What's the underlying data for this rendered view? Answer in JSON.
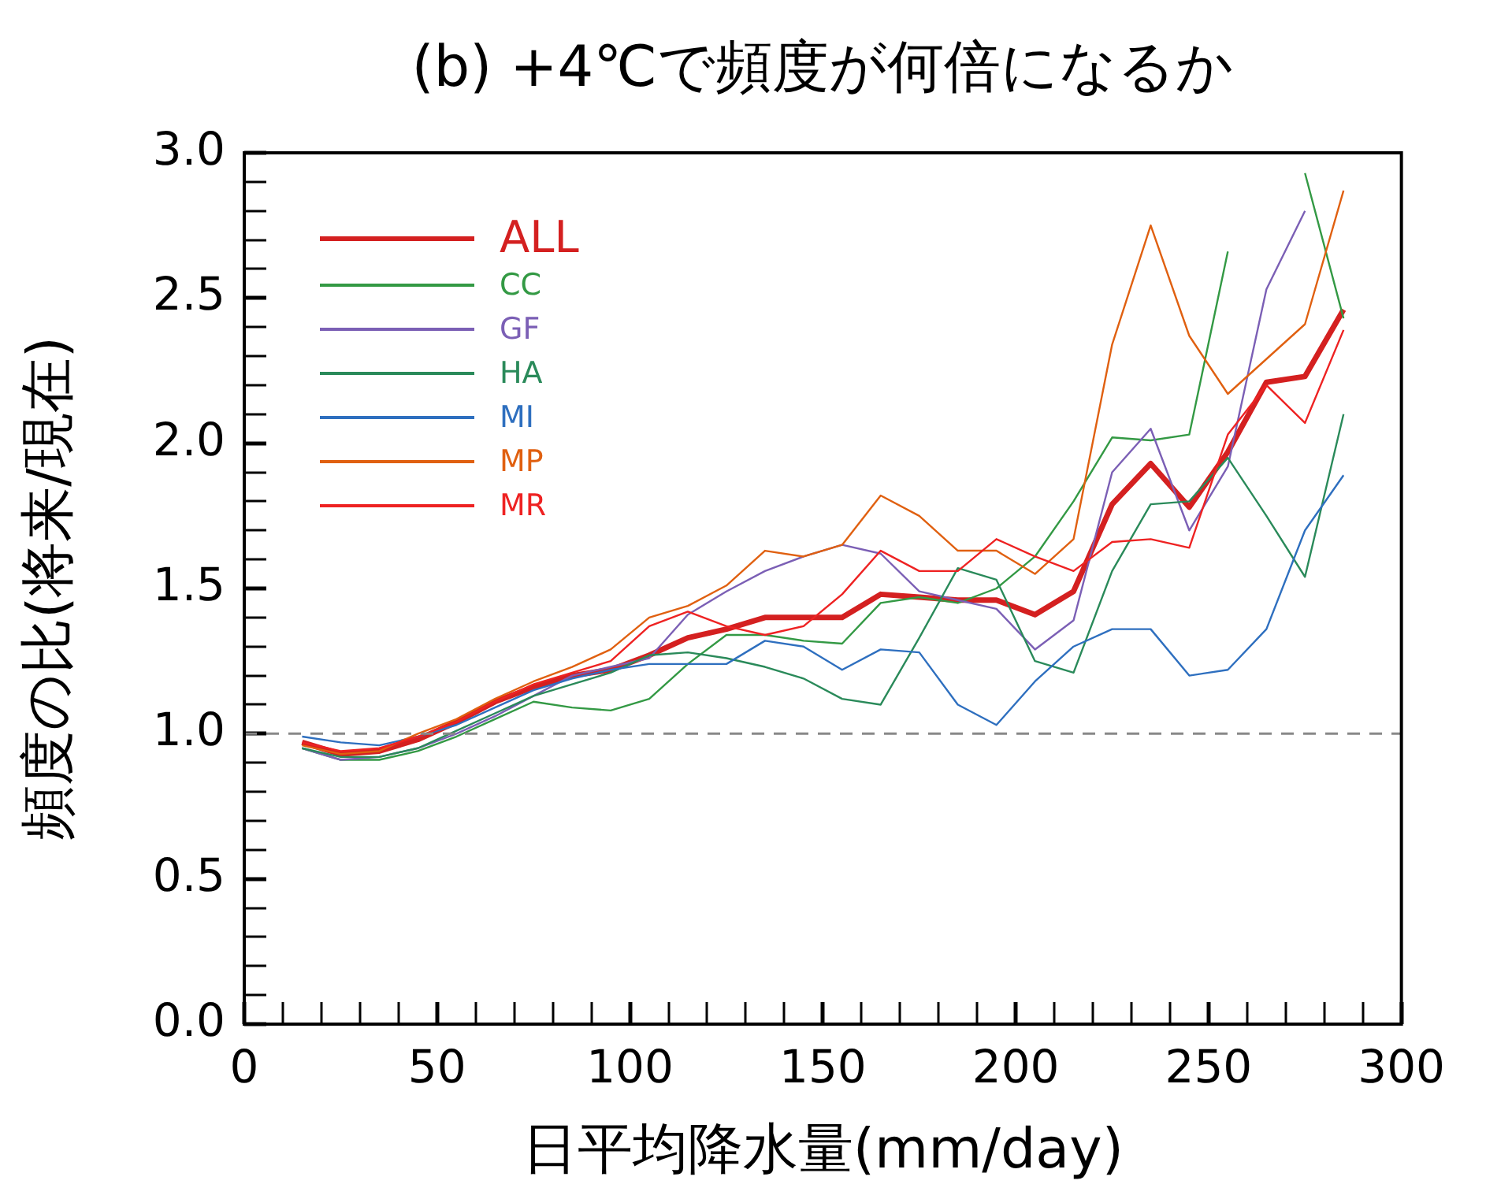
{
  "chart_data": {
    "type": "line",
    "title": "(b) +4℃で頻度が何倍になるか",
    "xlabel": "日平均降水量(mm/day)",
    "ylabel": "頻度の比(将来/現在)",
    "x": [
      15,
      25,
      35,
      45,
      55,
      65,
      75,
      85,
      95,
      105,
      115,
      125,
      135,
      145,
      155,
      165,
      175,
      185,
      195,
      205,
      215,
      225,
      235,
      245,
      255,
      265,
      275,
      285
    ],
    "series": [
      {
        "name": "ALL",
        "color": "#d42020",
        "values": [
          0.97,
          0.93,
          0.94,
          0.98,
          1.04,
          1.11,
          1.16,
          1.2,
          1.22,
          1.27,
          1.33,
          1.36,
          1.4,
          1.4,
          1.4,
          1.48,
          1.47,
          1.46,
          1.46,
          1.41,
          1.49,
          1.79,
          1.93,
          1.78,
          1.97,
          2.21,
          2.23,
          2.46
        ]
      },
      {
        "name": "CC",
        "color": "#339944",
        "values": [
          0.95,
          0.91,
          0.91,
          0.94,
          0.99,
          1.05,
          1.11,
          1.09,
          1.08,
          1.12,
          1.24,
          1.34,
          1.34,
          1.32,
          1.31,
          1.45,
          1.47,
          1.45,
          1.5,
          1.61,
          1.8,
          2.02,
          2.01,
          2.03,
          2.66,
          null,
          2.93,
          2.43
        ]
      },
      {
        "name": "GF",
        "color": "#7b5fb5",
        "values": [
          0.95,
          0.91,
          0.92,
          0.95,
          1.0,
          1.06,
          1.13,
          1.2,
          1.23,
          1.26,
          1.41,
          1.49,
          1.56,
          1.61,
          1.65,
          1.62,
          1.49,
          1.46,
          1.43,
          1.29,
          1.39,
          1.9,
          2.05,
          1.7,
          1.92,
          2.53,
          2.8,
          null
        ]
      },
      {
        "name": "HA",
        "color": "#2a8a5a",
        "values": [
          0.95,
          0.92,
          0.92,
          0.95,
          1.01,
          1.07,
          1.13,
          1.17,
          1.21,
          1.27,
          1.28,
          1.26,
          1.23,
          1.19,
          1.12,
          1.1,
          1.33,
          1.57,
          1.53,
          1.25,
          1.21,
          1.56,
          1.79,
          1.8,
          1.95,
          1.75,
          1.54,
          2.1
        ]
      },
      {
        "name": "MI",
        "color": "#2e6fbf",
        "values": [
          0.99,
          0.97,
          0.96,
          0.99,
          1.03,
          1.09,
          1.15,
          1.19,
          1.22,
          1.24,
          1.24,
          1.24,
          1.32,
          1.3,
          1.22,
          1.29,
          1.28,
          1.1,
          1.03,
          1.18,
          1.3,
          1.36,
          1.36,
          1.2,
          1.22,
          1.36,
          1.7,
          1.89
        ]
      },
      {
        "name": "MP",
        "color": "#e06010",
        "values": [
          0.96,
          0.93,
          0.94,
          1.0,
          1.05,
          1.12,
          1.18,
          1.23,
          1.29,
          1.4,
          1.44,
          1.51,
          1.63,
          1.61,
          1.65,
          1.82,
          1.75,
          1.63,
          1.63,
          1.55,
          1.67,
          2.34,
          2.75,
          2.37,
          2.17,
          2.29,
          2.41,
          2.87
        ]
      },
      {
        "name": "MR",
        "color": "#ee2222",
        "values": [
          0.97,
          0.94,
          0.95,
          0.99,
          1.04,
          1.11,
          1.17,
          1.21,
          1.25,
          1.37,
          1.42,
          1.37,
          1.34,
          1.37,
          1.48,
          1.63,
          1.56,
          1.56,
          1.67,
          1.61,
          1.56,
          1.66,
          1.67,
          1.64,
          2.03,
          2.2,
          2.07,
          2.39
        ]
      }
    ],
    "xlim": [
      0,
      300
    ],
    "xticks": [
      0,
      {
        "value": 10,
        "label": null
      },
      {
        "value": 20,
        "label": null
      },
      {
        "value": 30,
        "label": null
      },
      {
        "value": 40,
        "label": null
      },
      50,
      {
        "value": 60,
        "label": null
      },
      {
        "value": 70,
        "label": null
      },
      {
        "value": 80,
        "label": null
      },
      {
        "value": 90,
        "label": null
      },
      100,
      {
        "value": 110,
        "label": null
      },
      {
        "value": 120,
        "label": null
      },
      {
        "value": 130,
        "label": null
      },
      {
        "value": 140,
        "label": null
      },
      150,
      {
        "value": 160,
        "label": null
      },
      {
        "value": 170,
        "label": null
      },
      {
        "value": 180,
        "label": null
      },
      {
        "value": 190,
        "label": null
      },
      200,
      {
        "value": 210,
        "label": null
      },
      {
        "value": 220,
        "label": null
      },
      {
        "value": 230,
        "label": null
      },
      {
        "value": 240,
        "label": null
      },
      250,
      {
        "value": 260,
        "label": null
      },
      {
        "value": 270,
        "label": null
      },
      {
        "value": 280,
        "label": null
      },
      {
        "value": 290,
        "label": null
      },
      300
    ],
    "ylim": [
      0,
      3
    ],
    "yticks": [
      {
        "value": 0,
        "label": "0.0"
      },
      {
        "value": 0.1,
        "label": null
      },
      {
        "value": 0.2,
        "label": null
      },
      {
        "value": 0.3,
        "label": null
      },
      {
        "value": 0.4,
        "label": null
      },
      {
        "value": 0.5,
        "label": "0.5"
      },
      {
        "value": 0.6,
        "label": null
      },
      {
        "value": 0.7,
        "label": null
      },
      {
        "value": 0.8,
        "label": null
      },
      {
        "value": 0.9,
        "label": null
      },
      {
        "value": 1,
        "label": "1.0"
      },
      {
        "value": 1.1,
        "label": null
      },
      {
        "value": 1.2,
        "label": null
      },
      {
        "value": 1.3,
        "label": null
      },
      {
        "value": 1.4,
        "label": null
      },
      {
        "value": 1.5,
        "label": "1.5"
      },
      {
        "value": 1.6,
        "label": null
      },
      {
        "value": 1.7,
        "label": null
      },
      {
        "value": 1.8,
        "label": null
      },
      {
        "value": 1.9,
        "label": null
      },
      {
        "value": 2,
        "label": "2.0"
      },
      {
        "value": 2.1,
        "label": null
      },
      {
        "value": 2.2,
        "label": null
      },
      {
        "value": 2.3,
        "label": null
      },
      {
        "value": 2.4,
        "label": null
      },
      {
        "value": 2.5,
        "label": "2.5"
      },
      {
        "value": 2.6,
        "label": null
      },
      {
        "value": 2.7,
        "label": null
      },
      {
        "value": 2.8,
        "label": null
      },
      {
        "value": 2.9,
        "label": null
      },
      {
        "value": 3,
        "label": "3.0"
      }
    ],
    "ref_lines": [
      {
        "axis": "y",
        "value": 1,
        "color": "#888888",
        "line_style": "dashed"
      }
    ],
    "grid": false,
    "legend": "top left",
    "marker": "none",
    "line_style": "solid"
  }
}
